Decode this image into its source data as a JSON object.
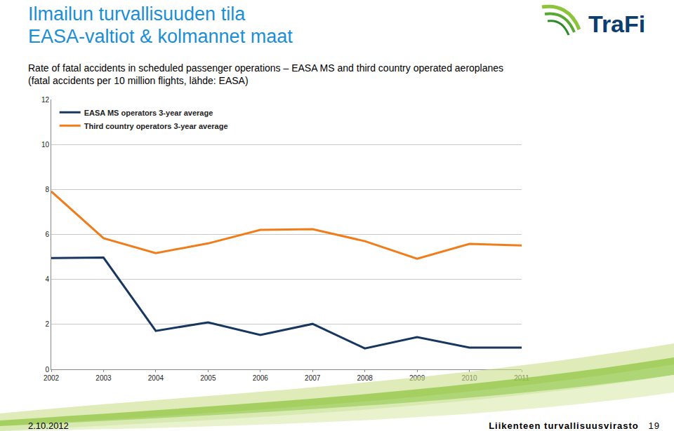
{
  "chart_data": {
    "type": "line",
    "title": "Ilmailun turvallisuuden tila\nEASA-valtiot & kolmannet maat",
    "subtitle": "Rate of fatal accidents in scheduled passenger operations – EASA MS and third country operated aeroplanes (fatal accidents per 10 million flights, lähde: EASA)",
    "x": [
      2002,
      2003,
      2004,
      2005,
      2006,
      2007,
      2008,
      2009,
      2010,
      2011
    ],
    "series": [
      {
        "name": "EASA MS operators 3-year average",
        "color": "#17375e",
        "values": [
          4.95,
          4.97,
          1.71,
          2.09,
          1.53,
          2.02,
          0.93,
          1.43,
          0.97,
          0.97
        ]
      },
      {
        "name": "Third country operators 3-year average",
        "color": "#f07d1a",
        "values": [
          7.91,
          5.83,
          5.17,
          5.6,
          6.2,
          6.23,
          5.7,
          4.92,
          5.58,
          5.51
        ]
      }
    ],
    "xlim": [
      2002,
      2011
    ],
    "xticks": [
      2002,
      2003,
      2004,
      2005,
      2006,
      2007,
      2008,
      2009,
      2010,
      2011
    ],
    "ylim": [
      0,
      12
    ],
    "yticks": [
      0,
      2,
      4,
      6,
      8,
      10,
      12
    ],
    "grid": true,
    "legend": "top-left"
  },
  "page": {
    "logo": "TraFi",
    "date": "2.10.2012",
    "footer": "Liikenteen turvallisuusvirasto",
    "page_number": 19
  }
}
